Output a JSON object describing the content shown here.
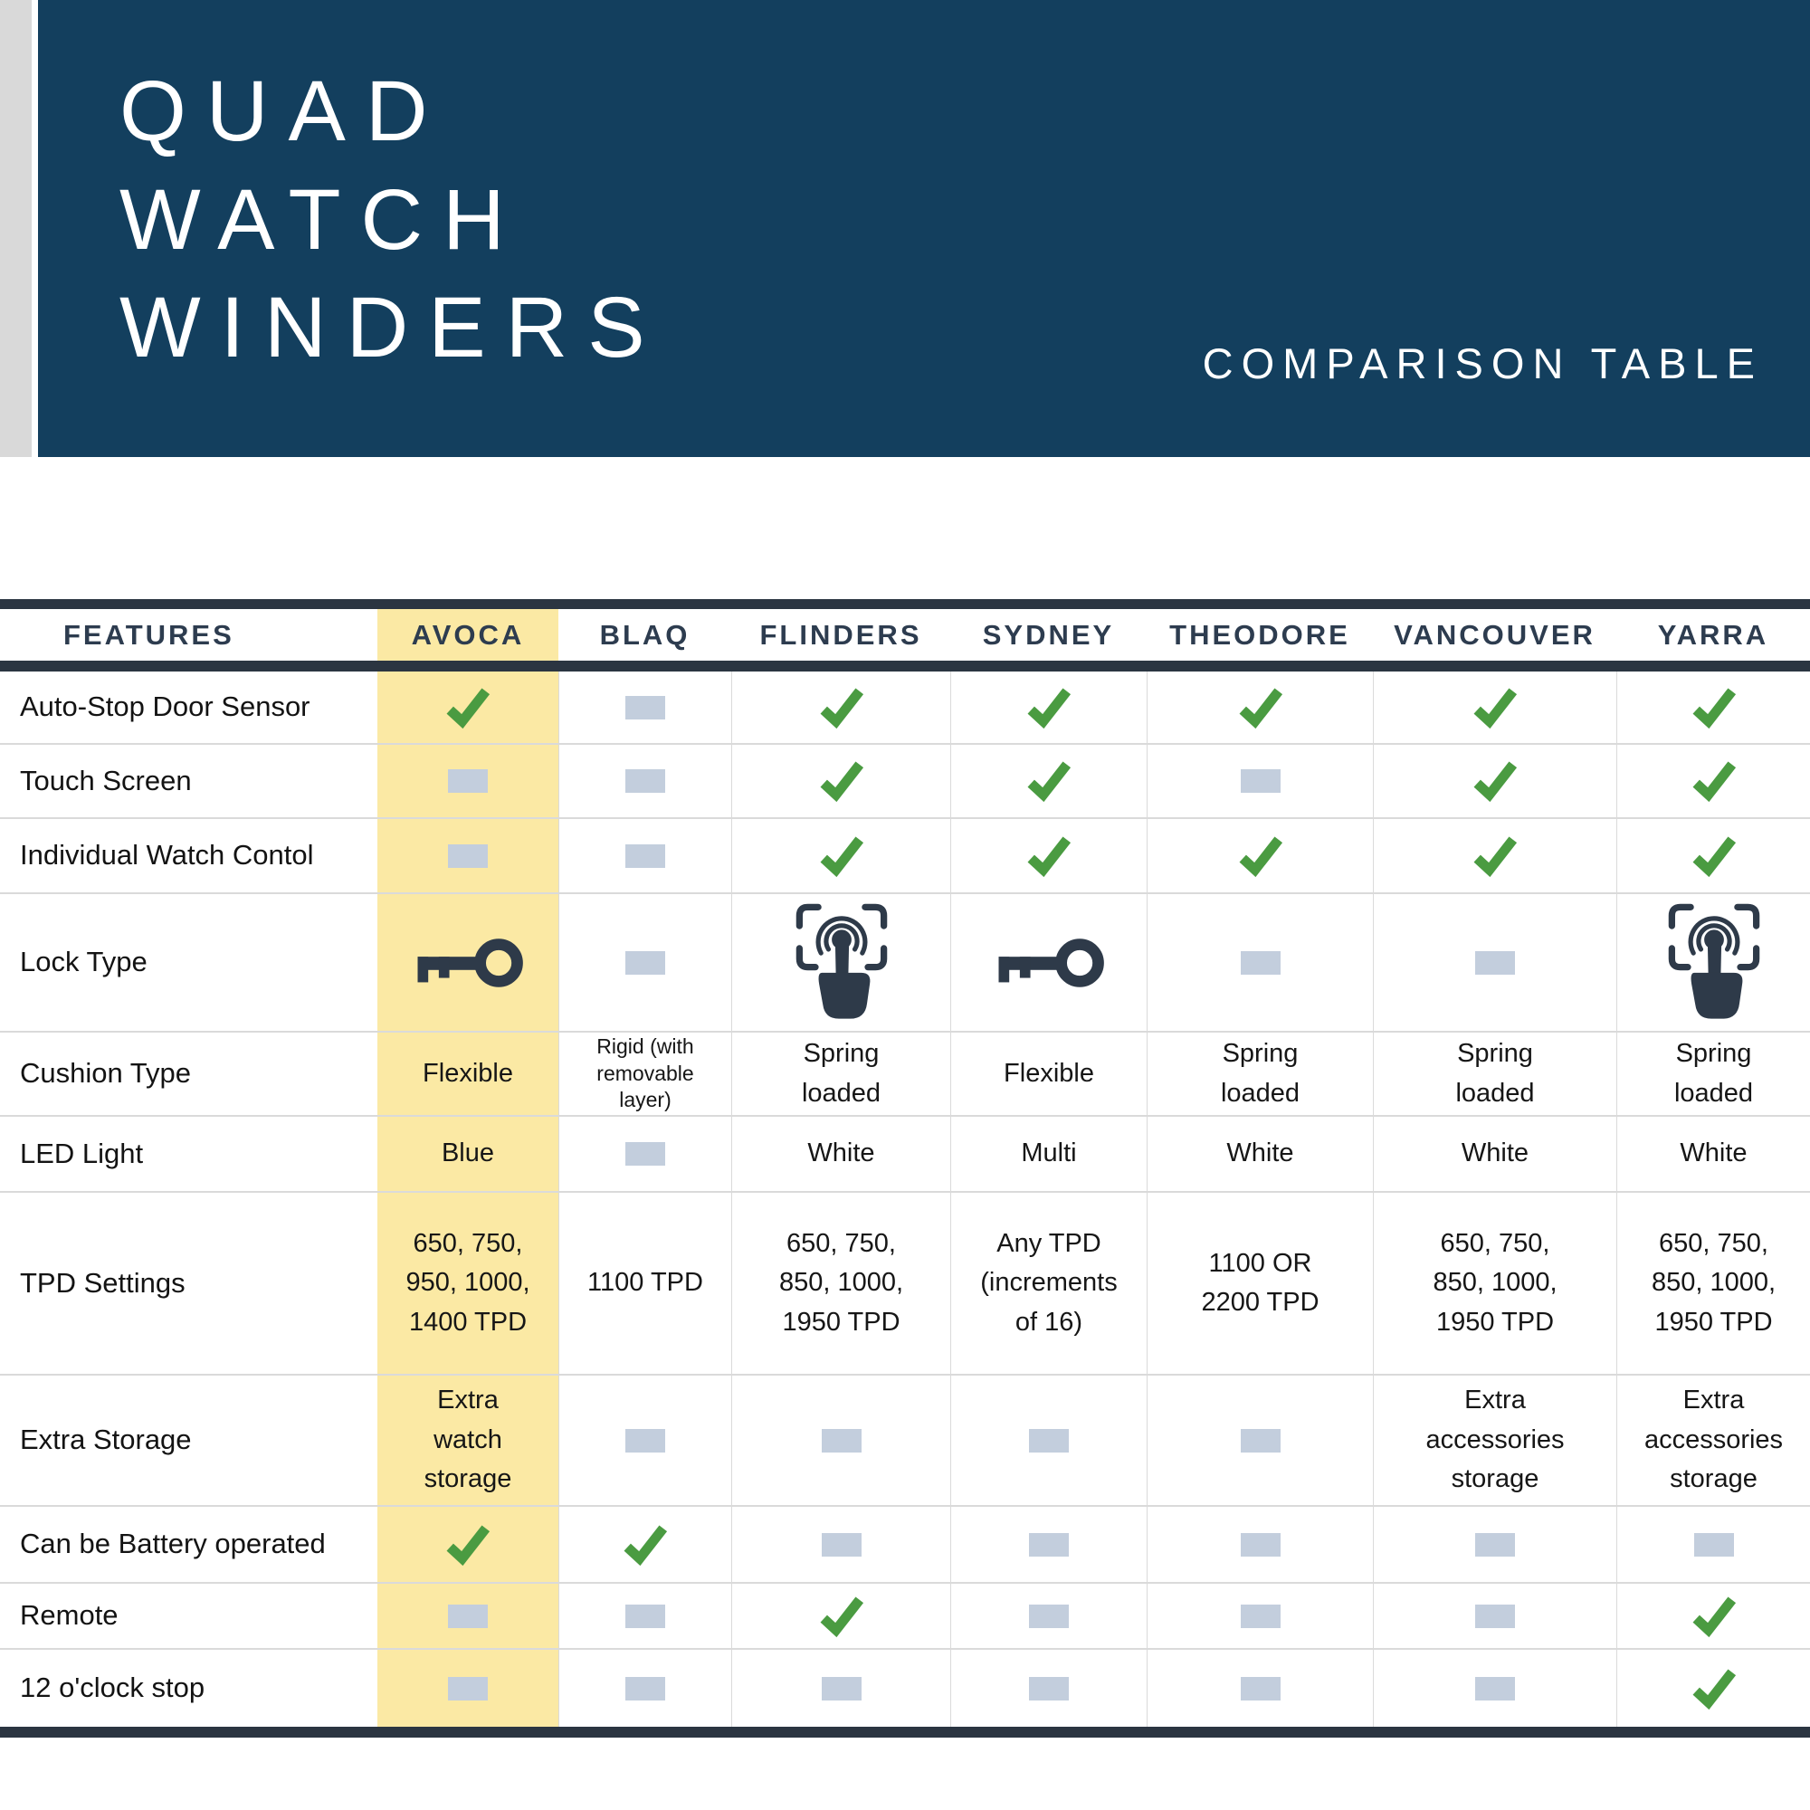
{
  "header": {
    "title_lines": [
      "QUAD",
      "WATCH",
      "WINDERS"
    ],
    "subtitle": "COMPARISON TABLE"
  },
  "table": {
    "columns": [
      "FEATURES",
      "AVOCA",
      "BLAQ",
      "FLINDERS",
      "SYDNEY",
      "THEODORE",
      "VANCOUVER",
      "YARRA"
    ],
    "highlighted_column": "AVOCA",
    "rows": [
      {
        "feature": "Auto-Stop Door Sensor",
        "cells": [
          {
            "t": "check"
          },
          {
            "t": "dash"
          },
          {
            "t": "check"
          },
          {
            "t": "check"
          },
          {
            "t": "check"
          },
          {
            "t": "check"
          },
          {
            "t": "check"
          }
        ]
      },
      {
        "feature": "Touch Screen",
        "cells": [
          {
            "t": "dash"
          },
          {
            "t": "dash"
          },
          {
            "t": "check"
          },
          {
            "t": "check"
          },
          {
            "t": "dash"
          },
          {
            "t": "check"
          },
          {
            "t": "check"
          }
        ]
      },
      {
        "feature": "Individual Watch Contol",
        "cells": [
          {
            "t": "dash"
          },
          {
            "t": "dash"
          },
          {
            "t": "check"
          },
          {
            "t": "check"
          },
          {
            "t": "check"
          },
          {
            "t": "check"
          },
          {
            "t": "check"
          }
        ]
      },
      {
        "feature": "Lock Type",
        "cells": [
          {
            "t": "key"
          },
          {
            "t": "dash"
          },
          {
            "t": "fingerprint"
          },
          {
            "t": "key"
          },
          {
            "t": "dash"
          },
          {
            "t": "dash"
          },
          {
            "t": "fingerprint"
          }
        ]
      },
      {
        "feature": "Cushion Type",
        "cells": [
          {
            "t": "text",
            "v": "Flexible"
          },
          {
            "t": "text",
            "v": "Rigid (with\nremovable\nlayer)",
            "small": true
          },
          {
            "t": "text",
            "v": "Spring\nloaded"
          },
          {
            "t": "text",
            "v": "Flexible"
          },
          {
            "t": "text",
            "v": "Spring\nloaded"
          },
          {
            "t": "text",
            "v": "Spring\nloaded"
          },
          {
            "t": "text",
            "v": "Spring\nloaded"
          }
        ]
      },
      {
        "feature": "LED Light",
        "cells": [
          {
            "t": "text",
            "v": "Blue"
          },
          {
            "t": "dash"
          },
          {
            "t": "text",
            "v": "White"
          },
          {
            "t": "text",
            "v": "Multi"
          },
          {
            "t": "text",
            "v": "White"
          },
          {
            "t": "text",
            "v": "White"
          },
          {
            "t": "text",
            "v": "White"
          }
        ]
      },
      {
        "feature": "TPD Settings",
        "cells": [
          {
            "t": "text",
            "v": "650, 750,\n950, 1000,\n1400 TPD"
          },
          {
            "t": "text",
            "v": "1100 TPD"
          },
          {
            "t": "text",
            "v": "650, 750,\n850, 1000,\n1950 TPD"
          },
          {
            "t": "text",
            "v": "Any TPD\n(increments\nof 16)"
          },
          {
            "t": "text",
            "v": "1100 OR\n2200 TPD"
          },
          {
            "t": "text",
            "v": "650, 750,\n850, 1000,\n1950 TPD"
          },
          {
            "t": "text",
            "v": "650, 750,\n850, 1000,\n1950 TPD"
          }
        ]
      },
      {
        "feature": "Extra Storage",
        "cells": [
          {
            "t": "text",
            "v": "Extra\nwatch\nstorage"
          },
          {
            "t": "dash"
          },
          {
            "t": "dash"
          },
          {
            "t": "dash"
          },
          {
            "t": "dash"
          },
          {
            "t": "text",
            "v": "Extra\naccessories\nstorage"
          },
          {
            "t": "text",
            "v": "Extra\naccessories\nstorage"
          }
        ]
      },
      {
        "feature": "Can be Battery operated",
        "cells": [
          {
            "t": "check"
          },
          {
            "t": "check"
          },
          {
            "t": "dash"
          },
          {
            "t": "dash"
          },
          {
            "t": "dash"
          },
          {
            "t": "dash"
          },
          {
            "t": "dash"
          }
        ]
      },
      {
        "feature": "Remote",
        "cells": [
          {
            "t": "dash"
          },
          {
            "t": "dash"
          },
          {
            "t": "check"
          },
          {
            "t": "dash"
          },
          {
            "t": "dash"
          },
          {
            "t": "dash"
          },
          {
            "t": "check"
          }
        ]
      },
      {
        "feature": "12 o'clock stop",
        "cells": [
          {
            "t": "dash"
          },
          {
            "t": "dash"
          },
          {
            "t": "dash"
          },
          {
            "t": "dash"
          },
          {
            "t": "dash"
          },
          {
            "t": "dash"
          },
          {
            "t": "check"
          }
        ]
      }
    ]
  },
  "chart_data": {
    "type": "table",
    "title": "QUAD WATCH WINDERS — COMPARISON TABLE",
    "columns": [
      "FEATURES",
      "AVOCA",
      "BLAQ",
      "FLINDERS",
      "SYDNEY",
      "THEODORE",
      "VANCOUVER",
      "YARRA"
    ],
    "highlighted_column": "AVOCA",
    "rows": [
      [
        "Auto-Stop Door Sensor",
        "yes",
        "no",
        "yes",
        "yes",
        "yes",
        "yes",
        "yes"
      ],
      [
        "Touch Screen",
        "no",
        "no",
        "yes",
        "yes",
        "no",
        "yes",
        "yes"
      ],
      [
        "Individual Watch Contol",
        "no",
        "no",
        "yes",
        "yes",
        "yes",
        "yes",
        "yes"
      ],
      [
        "Lock Type",
        "key",
        "no",
        "fingerprint",
        "key",
        "no",
        "no",
        "fingerprint"
      ],
      [
        "Cushion Type",
        "Flexible",
        "Rigid (with removable layer)",
        "Spring loaded",
        "Flexible",
        "Spring loaded",
        "Spring loaded",
        "Spring loaded"
      ],
      [
        "LED Light",
        "Blue",
        "no",
        "White",
        "Multi",
        "White",
        "White",
        "White"
      ],
      [
        "TPD Settings",
        "650, 750, 950, 1000, 1400 TPD",
        "1100 TPD",
        "650, 750, 850, 1000, 1950 TPD",
        "Any TPD (increments of 16)",
        "1100 OR 2200 TPD",
        "650, 750, 850, 1000, 1950 TPD",
        "650, 750, 850, 1000, 1950 TPD"
      ],
      [
        "Extra Storage",
        "Extra watch storage",
        "no",
        "no",
        "no",
        "no",
        "Extra accessories storage",
        "Extra accessories storage"
      ],
      [
        "Can be Battery operated",
        "yes",
        "yes",
        "no",
        "no",
        "no",
        "no",
        "no"
      ],
      [
        "Remote",
        "no",
        "no",
        "yes",
        "no",
        "no",
        "no",
        "yes"
      ],
      [
        "12 o'clock stop",
        "no",
        "no",
        "no",
        "no",
        "no",
        "no",
        "yes"
      ]
    ]
  },
  "icons": {
    "check": "check-icon",
    "dash": "not-available-dash-icon",
    "key": "key-lock-icon",
    "fingerprint": "fingerprint-touch-lock-icon"
  },
  "colors": {
    "navy": "#133f5e",
    "bar": "#2b3541",
    "yellow": "#fbe9a4",
    "green": "#4a9b41",
    "dash": "#c3cedd",
    "strip": "#d9d9d9",
    "head_text": "#2d3c4f",
    "grid_line": "#dadada",
    "icon_navy": "#2e3a49"
  }
}
